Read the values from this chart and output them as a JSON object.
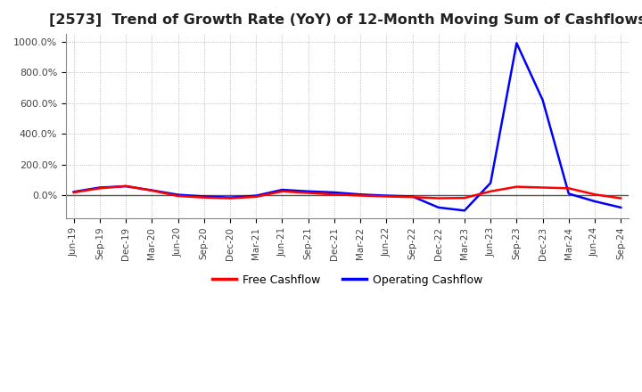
{
  "title": "[2573]  Trend of Growth Rate (YoY) of 12-Month Moving Sum of Cashflows",
  "title_fontsize": 11.5,
  "ylim": [
    -150,
    1050
  ],
  "yticks": [
    0,
    200,
    400,
    600,
    800,
    1000
  ],
  "ytick_labels": [
    "0.0%",
    "200.0%",
    "400.0%",
    "600.0%",
    "800.0%",
    "1000.0%"
  ],
  "background_color": "#ffffff",
  "grid_color": "#aaaaaa",
  "legend_labels": [
    "Operating Cashflow",
    "Free Cashflow"
  ],
  "legend_colors": [
    "#ff0000",
    "#0000ff"
  ],
  "x_labels": [
    "Jun-19",
    "Sep-19",
    "Dec-19",
    "Mar-20",
    "Jun-20",
    "Sep-20",
    "Dec-20",
    "Mar-21",
    "Jun-21",
    "Sep-21",
    "Dec-21",
    "Mar-22",
    "Jun-22",
    "Sep-22",
    "Dec-22",
    "Mar-23",
    "Jun-23",
    "Sep-23",
    "Dec-23",
    "Mar-24",
    "Jun-24",
    "Sep-24"
  ],
  "operating_cashflow": [
    18,
    45,
    60,
    30,
    -5,
    -15,
    -20,
    -10,
    25,
    15,
    5,
    -2,
    -8,
    -12,
    -20,
    -18,
    25,
    55,
    50,
    45,
    5,
    -20
  ],
  "free_cashflow": [
    22,
    50,
    58,
    32,
    3,
    -8,
    -15,
    -3,
    35,
    25,
    18,
    5,
    -3,
    -8,
    -80,
    -100,
    80,
    990,
    620,
    10,
    -40,
    -80
  ]
}
